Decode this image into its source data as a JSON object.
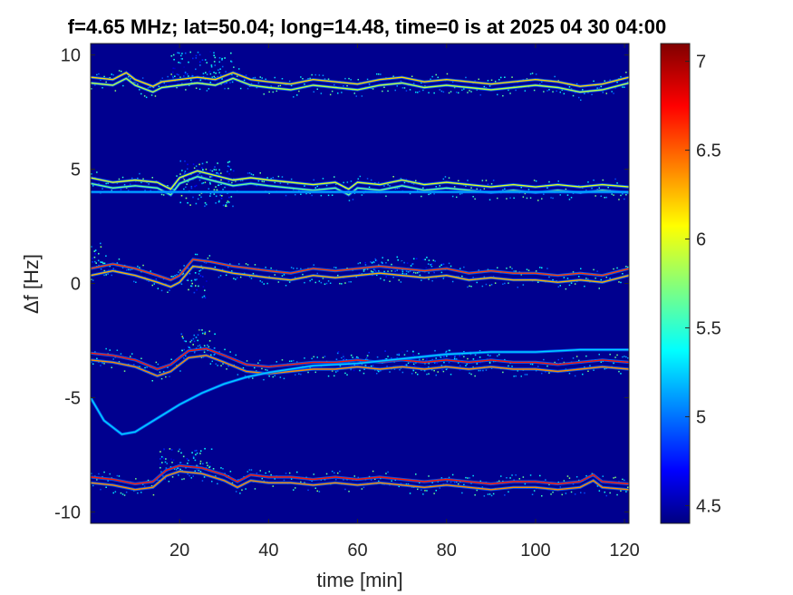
{
  "chart_data": {
    "type": "heatmap",
    "title": "f=4.65 MHz;  lat=50.04; long=14.48, time=0 is at 2025 04 30 04:00",
    "xlabel": "time [min]",
    "ylabel": "Δf [Hz]",
    "xlim": [
      0,
      121
    ],
    "ylim": [
      -10.5,
      10.5
    ],
    "xticks": [
      20,
      40,
      60,
      80,
      100,
      120
    ],
    "xtick_labels": [
      "20",
      "40",
      "60",
      "80",
      "100",
      "120"
    ],
    "yticks": [
      10,
      5,
      0,
      -5,
      -10
    ],
    "ytick_labels": [
      "10",
      "5",
      "0",
      "-5",
      "-10"
    ],
    "colorbar": {
      "range": [
        4.4,
        7.1
      ],
      "ticks": [
        4.5,
        5,
        5.5,
        6,
        6.5,
        7
      ],
      "tick_labels": [
        "4.5",
        "5",
        "5.5",
        "6",
        "6.5",
        "7"
      ],
      "colormap": "jet"
    },
    "background_value": 4.45,
    "traces": [
      {
        "name": "",
        "points": [
          [
            0,
            8.9
          ],
          [
            5,
            8.8
          ],
          [
            8,
            9.1
          ],
          [
            10,
            8.8
          ],
          [
            14,
            8.5
          ],
          [
            16,
            8.7
          ],
          [
            20,
            8.8
          ],
          [
            24,
            8.9
          ],
          [
            28,
            8.8
          ],
          [
            32,
            9.1
          ],
          [
            36,
            8.8
          ],
          [
            40,
            8.7
          ],
          [
            45,
            8.6
          ],
          [
            50,
            8.8
          ],
          [
            55,
            8.7
          ],
          [
            60,
            8.6
          ],
          [
            65,
            8.8
          ],
          [
            70,
            8.9
          ],
          [
            75,
            8.7
          ],
          [
            80,
            8.8
          ],
          [
            85,
            8.7
          ],
          [
            90,
            8.6
          ],
          [
            95,
            8.7
          ],
          [
            100,
            8.8
          ],
          [
            105,
            8.7
          ],
          [
            110,
            8.5
          ],
          [
            115,
            8.6
          ],
          [
            121,
            8.9
          ]
        ],
        "offset": 0.25,
        "intensity": 6.2
      },
      {
        "name": "",
        "points": [
          [
            0,
            4.5
          ],
          [
            5,
            4.3
          ],
          [
            10,
            4.4
          ],
          [
            15,
            4.3
          ],
          [
            18,
            4.0
          ],
          [
            20,
            4.5
          ],
          [
            24,
            4.8
          ],
          [
            28,
            4.6
          ],
          [
            32,
            4.4
          ],
          [
            36,
            4.5
          ],
          [
            40,
            4.4
          ],
          [
            45,
            4.3
          ],
          [
            50,
            4.2
          ],
          [
            55,
            4.3
          ],
          [
            58,
            4.0
          ],
          [
            60,
            4.3
          ],
          [
            65,
            4.2
          ],
          [
            70,
            4.4
          ],
          [
            75,
            4.2
          ],
          [
            80,
            4.3
          ],
          [
            85,
            4.2
          ],
          [
            90,
            4.1
          ],
          [
            95,
            4.2
          ],
          [
            100,
            4.1
          ],
          [
            105,
            4.2
          ],
          [
            110,
            4.1
          ],
          [
            115,
            4.2
          ],
          [
            121,
            4.1
          ]
        ],
        "offset": 0.25,
        "intensity": 6.0
      },
      {
        "name": "",
        "points": [
          [
            0,
            0.5
          ],
          [
            5,
            0.7
          ],
          [
            10,
            0.5
          ],
          [
            15,
            0.2
          ],
          [
            18,
            0.0
          ],
          [
            20,
            0.2
          ],
          [
            23,
            0.9
          ],
          [
            27,
            0.8
          ],
          [
            32,
            0.6
          ],
          [
            36,
            0.5
          ],
          [
            40,
            0.4
          ],
          [
            45,
            0.3
          ],
          [
            50,
            0.5
          ],
          [
            55,
            0.4
          ],
          [
            60,
            0.5
          ],
          [
            65,
            0.6
          ],
          [
            70,
            0.5
          ],
          [
            75,
            0.4
          ],
          [
            80,
            0.5
          ],
          [
            85,
            0.3
          ],
          [
            90,
            0.4
          ],
          [
            95,
            0.3
          ],
          [
            100,
            0.3
          ],
          [
            105,
            0.2
          ],
          [
            110,
            0.3
          ],
          [
            115,
            0.2
          ],
          [
            121,
            0.5
          ]
        ],
        "offset": 0.3,
        "intensity": 6.6
      },
      {
        "name": "",
        "points": [
          [
            0,
            -3.2
          ],
          [
            5,
            -3.3
          ],
          [
            10,
            -3.5
          ],
          [
            15,
            -3.9
          ],
          [
            18,
            -3.7
          ],
          [
            22,
            -3.1
          ],
          [
            26,
            -3.0
          ],
          [
            30,
            -3.3
          ],
          [
            35,
            -3.7
          ],
          [
            40,
            -3.8
          ],
          [
            45,
            -3.7
          ],
          [
            50,
            -3.6
          ],
          [
            55,
            -3.6
          ],
          [
            60,
            -3.5
          ],
          [
            65,
            -3.6
          ],
          [
            70,
            -3.5
          ],
          [
            75,
            -3.6
          ],
          [
            80,
            -3.5
          ],
          [
            85,
            -3.6
          ],
          [
            90,
            -3.5
          ],
          [
            95,
            -3.6
          ],
          [
            100,
            -3.6
          ],
          [
            105,
            -3.7
          ],
          [
            110,
            -3.6
          ],
          [
            115,
            -3.5
          ],
          [
            121,
            -3.6
          ]
        ],
        "offset": 0.3,
        "intensity": 6.7
      },
      {
        "name": "",
        "points": [
          [
            0,
            -5.0
          ],
          [
            3,
            -6.0
          ],
          [
            7,
            -6.6
          ],
          [
            10,
            -6.5
          ],
          [
            15,
            -5.9
          ],
          [
            20,
            -5.3
          ],
          [
            25,
            -4.8
          ],
          [
            30,
            -4.4
          ],
          [
            35,
            -4.1
          ],
          [
            40,
            -3.9
          ],
          [
            50,
            -3.6
          ],
          [
            60,
            -3.5
          ],
          [
            70,
            -3.3
          ],
          [
            80,
            -3.1
          ],
          [
            90,
            -3.0
          ],
          [
            100,
            -3.0
          ],
          [
            110,
            -2.9
          ],
          [
            121,
            -2.9
          ]
        ],
        "offset": 0,
        "intensity": 5.3
      },
      {
        "name": "",
        "points": [
          [
            0,
            -8.6
          ],
          [
            5,
            -8.7
          ],
          [
            10,
            -8.9
          ],
          [
            14,
            -8.8
          ],
          [
            17,
            -8.3
          ],
          [
            20,
            -8.1
          ],
          [
            25,
            -8.2
          ],
          [
            30,
            -8.5
          ],
          [
            33,
            -8.8
          ],
          [
            36,
            -8.5
          ],
          [
            40,
            -8.6
          ],
          [
            45,
            -8.6
          ],
          [
            50,
            -8.7
          ],
          [
            55,
            -8.6
          ],
          [
            60,
            -8.7
          ],
          [
            65,
            -8.6
          ],
          [
            70,
            -8.7
          ],
          [
            75,
            -8.8
          ],
          [
            80,
            -8.7
          ],
          [
            85,
            -8.8
          ],
          [
            90,
            -8.9
          ],
          [
            95,
            -8.8
          ],
          [
            100,
            -8.8
          ],
          [
            105,
            -8.9
          ],
          [
            110,
            -8.8
          ],
          [
            113,
            -8.5
          ],
          [
            115,
            -8.8
          ],
          [
            121,
            -8.9
          ]
        ],
        "offset": 0.25,
        "intensity": 6.7
      },
      {
        "name": "",
        "points": [
          [
            0,
            4.0
          ],
          [
            121,
            4.0
          ]
        ],
        "offset": 0,
        "intensity": 5.2
      }
    ],
    "noise_clouds": [
      {
        "x": [
          20,
          32
        ],
        "y": [
          3.4,
          5.4
        ],
        "level": 5.3
      },
      {
        "x": [
          18,
          32
        ],
        "y": [
          8.6,
          10.2
        ],
        "level": 5.0
      },
      {
        "x": [
          20,
          26
        ],
        "y": [
          -0.6,
          0.8
        ],
        "level": 5.2
      },
      {
        "x": [
          0,
          4
        ],
        "y": [
          0.5,
          1.8
        ],
        "level": 5.2
      },
      {
        "x": [
          20,
          28
        ],
        "y": [
          -3.2,
          -2.0
        ],
        "level": 5.4
      },
      {
        "x": [
          15,
          28
        ],
        "y": [
          -8.2,
          -7.2
        ],
        "level": 5.2
      },
      {
        "x": [
          55,
          90
        ],
        "y": [
          -3.8,
          -2.9
        ],
        "level": 5.0
      },
      {
        "x": [
          60,
          80
        ],
        "y": [
          0.3,
          1.2
        ],
        "level": 5.0
      }
    ]
  }
}
